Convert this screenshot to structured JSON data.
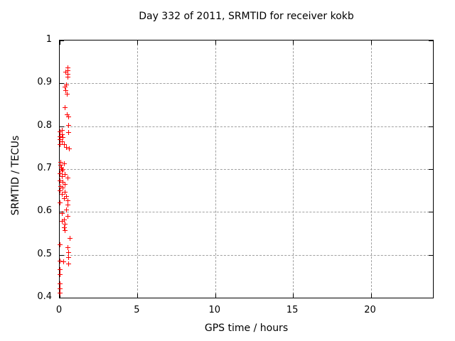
{
  "title": "Day 332 of 2011, SRMTID for receiver kokb",
  "colors": {
    "background": "#ffffff",
    "border": "#000000",
    "grid": "#a0a0a0",
    "marker": "#ff0000",
    "text": "#000000"
  },
  "chart_data": {
    "type": "scatter",
    "title": "Day 332 of 2011, SRMTID for receiver kokb",
    "xlabel": "GPS time / hours",
    "ylabel": "SRMTID / TECUs",
    "xlim": [
      0,
      24
    ],
    "ylim": [
      0.4,
      1
    ],
    "xticks": [
      0,
      5,
      10,
      15,
      20
    ],
    "yticks": [
      0.4,
      0.5,
      0.6,
      0.7,
      0.8,
      0.9,
      1
    ],
    "grid": true,
    "legend": "none",
    "marker": "plus",
    "marker_color": "#ff0000",
    "series": [
      {
        "name": "SRMTID",
        "points": [
          [
            0.51,
            0.937
          ],
          [
            0.51,
            0.93
          ],
          [
            0.41,
            0.926
          ],
          [
            0.51,
            0.921
          ],
          [
            0.51,
            0.914
          ],
          [
            0.44,
            0.897
          ],
          [
            0.32,
            0.892
          ],
          [
            0.4,
            0.883
          ],
          [
            0.47,
            0.875
          ],
          [
            0.36,
            0.843
          ],
          [
            0.47,
            0.826
          ],
          [
            0.55,
            0.822
          ],
          [
            0.55,
            0.802
          ],
          [
            0.14,
            0.79
          ],
          [
            0.0,
            0.787
          ],
          [
            0.55,
            0.785
          ],
          [
            0.14,
            0.78
          ],
          [
            0.0,
            0.776
          ],
          [
            0.21,
            0.773
          ],
          [
            0.0,
            0.768
          ],
          [
            0.14,
            0.763
          ],
          [
            0.0,
            0.758
          ],
          [
            0.29,
            0.757
          ],
          [
            0.44,
            0.751
          ],
          [
            0.6,
            0.747
          ],
          [
            0.06,
            0.716
          ],
          [
            0.29,
            0.713
          ],
          [
            0.06,
            0.709
          ],
          [
            0.1,
            0.702
          ],
          [
            0.21,
            0.7
          ],
          [
            0.14,
            0.696
          ],
          [
            0.0,
            0.69
          ],
          [
            0.36,
            0.687
          ],
          [
            0.14,
            0.683
          ],
          [
            0.51,
            0.68
          ],
          [
            0.0,
            0.673
          ],
          [
            0.21,
            0.669
          ],
          [
            0.36,
            0.664
          ],
          [
            0.06,
            0.66
          ],
          [
            0.21,
            0.656
          ],
          [
            0.0,
            0.65
          ],
          [
            0.36,
            0.646
          ],
          [
            0.14,
            0.641
          ],
          [
            0.44,
            0.637
          ],
          [
            0.29,
            0.631
          ],
          [
            0.51,
            0.627
          ],
          [
            0.0,
            0.622
          ],
          [
            0.51,
            0.617
          ],
          [
            0.44,
            0.605
          ],
          [
            0.14,
            0.597
          ],
          [
            0.51,
            0.589
          ],
          [
            0.29,
            0.581
          ],
          [
            0.14,
            0.578
          ],
          [
            0.36,
            0.572
          ],
          [
            0.29,
            0.564
          ],
          [
            0.36,
            0.556
          ],
          [
            0.67,
            0.539
          ],
          [
            0.0,
            0.523
          ],
          [
            0.51,
            0.517
          ],
          [
            0.55,
            0.506
          ],
          [
            0.55,
            0.494
          ],
          [
            0.0,
            0.486
          ],
          [
            0.26,
            0.483
          ],
          [
            0.59,
            0.479
          ],
          [
            0.0,
            0.466
          ],
          [
            0.0,
            0.454
          ],
          [
            0.0,
            0.433
          ],
          [
            0.0,
            0.421
          ],
          [
            0.0,
            0.41
          ]
        ]
      }
    ]
  }
}
